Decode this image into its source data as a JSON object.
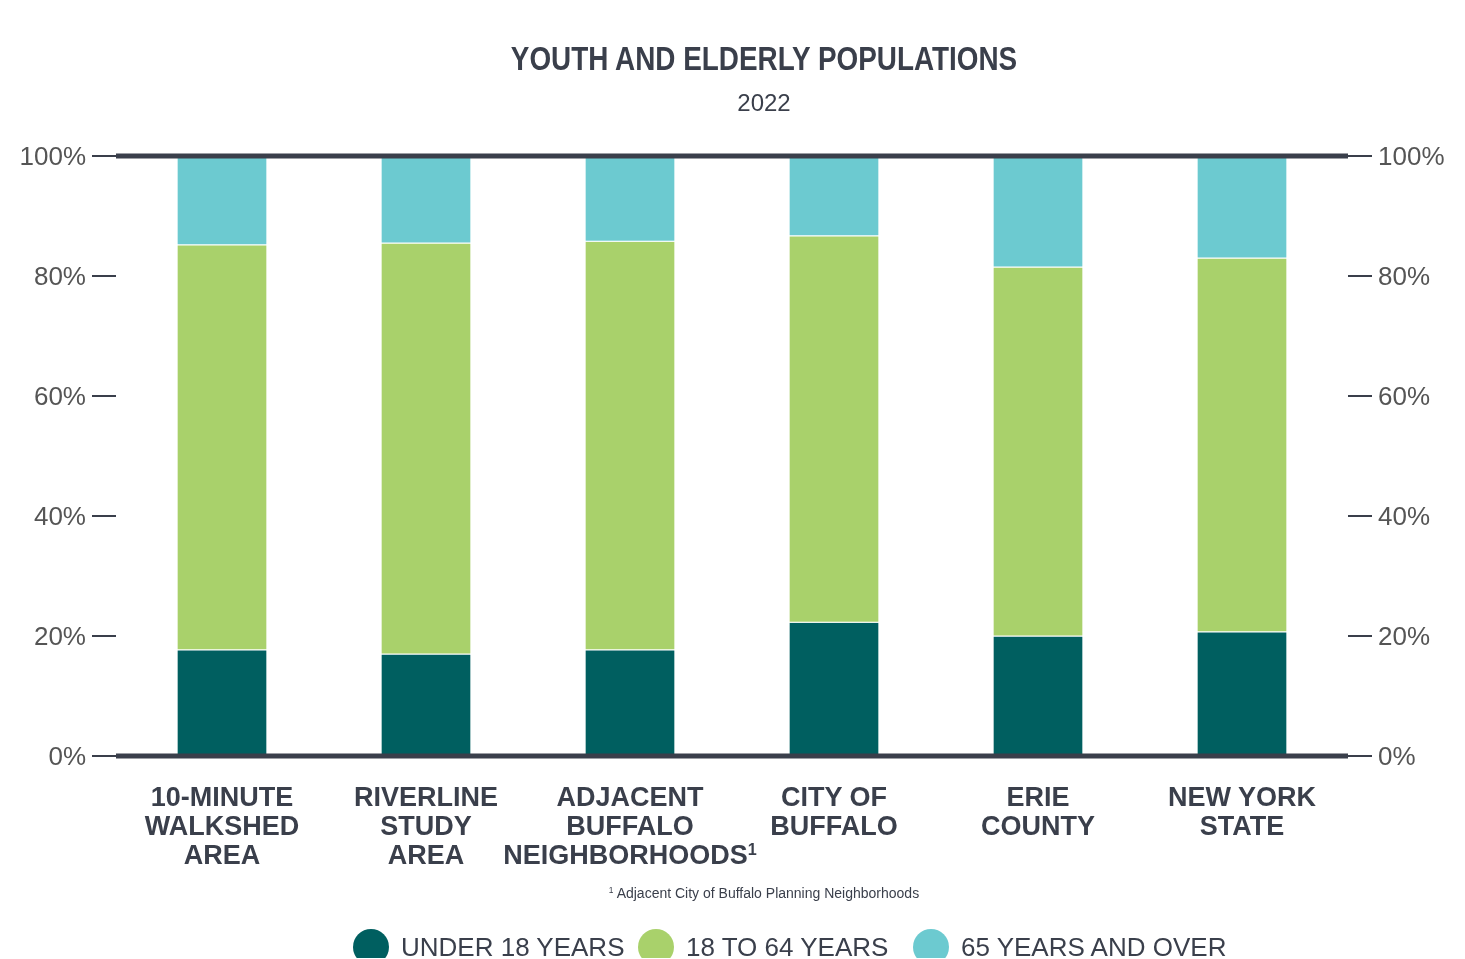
{
  "chart_data": {
    "type": "bar",
    "title": "YOUTH AND ELDERLY POPULATIONS",
    "subtitle": "2022",
    "categories": [
      "10-MINUTE WALKSHED AREA",
      "RIVERLINE STUDY AREA",
      "ADJACENT BUFFALO NEIGHBORHOODS$^{1}$",
      "CITY OF BUFFALO",
      "ERIE COUNTY",
      "NEW YORK STATE"
    ],
    "stacked": true,
    "series": [
      {
        "name": "UNDER 18 YEARS",
        "color": "#005f60",
        "values": [
          17.7,
          17.0,
          17.7,
          22.3,
          20.0,
          20.7
        ]
      },
      {
        "name": "18 TO 64 YEARS",
        "color": "#a9d16b",
        "values": [
          67.5,
          68.5,
          68.1,
          64.4,
          61.5,
          62.3
        ]
      },
      {
        "name": "65 YEARS AND OVER",
        "color": "#6ccad0",
        "values": [
          14.8,
          14.5,
          14.2,
          13.3,
          18.5,
          17.0
        ]
      }
    ],
    "ylim": [
      0,
      100
    ],
    "yticks": [
      {
        "value": 0,
        "label": "0%"
      },
      {
        "value": 20,
        "label": "20%"
      },
      {
        "value": 40,
        "label": "40%"
      },
      {
        "value": 60,
        "label": "60%"
      },
      {
        "value": 80,
        "label": "80%"
      },
      {
        "value": 100,
        "label": "100%"
      }
    ],
    "y2lim": [
      0,
      100
    ],
    "y2ticks": [
      {
        "value": 0,
        "label": "0%"
      },
      {
        "value": 20,
        "label": "20%"
      },
      {
        "value": 40,
        "label": "40%"
      },
      {
        "value": 60,
        "label": "60%"
      },
      {
        "value": 80,
        "label": "80%"
      },
      {
        "value": 100,
        "label": "100%"
      }
    ],
    "grid": false,
    "legend": "bottom",
    "annotations": [
      "$^{1}$ Adjacent City of Buffalo Planning Neighborhoods"
    ]
  }
}
